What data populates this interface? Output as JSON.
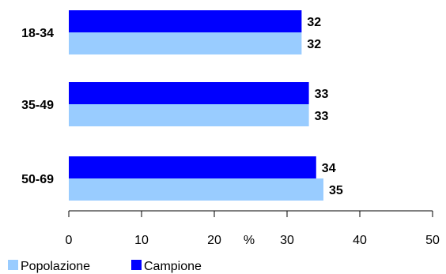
{
  "chart_data": {
    "type": "bar",
    "orientation": "horizontal",
    "categories": [
      "18-34",
      "35-49",
      "50-69"
    ],
    "series": [
      {
        "name": "Campione",
        "color": "#0000ff",
        "values": [
          32,
          33,
          34
        ]
      },
      {
        "name": "Popolazione",
        "color": "#99ccff",
        "values": [
          32,
          33,
          35
        ]
      }
    ],
    "data_labels": {
      "Campione": [
        "32",
        "33",
        "34"
      ],
      "Popolazione": [
        "32",
        "33",
        "35"
      ]
    },
    "xlabel": "%",
    "xlim": [
      0,
      50
    ],
    "xticks": [
      0,
      10,
      20,
      30,
      40,
      50
    ],
    "xtick_labels": [
      "0",
      "10",
      "20",
      "30",
      "40",
      "50"
    ],
    "grid": false,
    "legend": {
      "position": "bottom-left",
      "entries": [
        "Popolazione",
        "Campione"
      ]
    }
  }
}
